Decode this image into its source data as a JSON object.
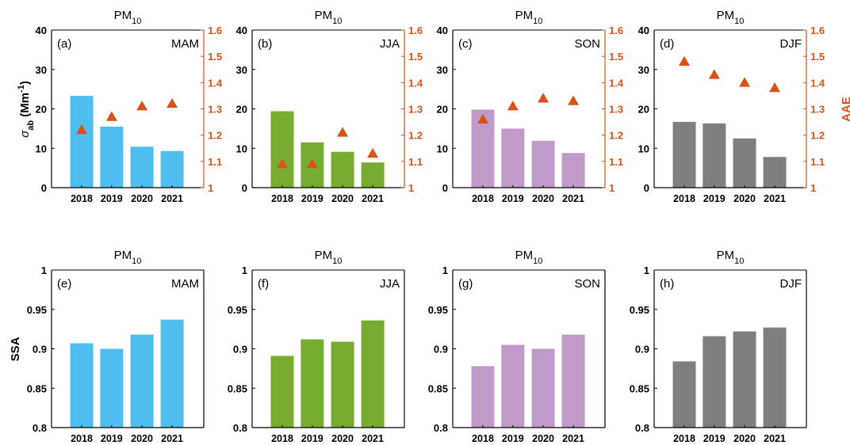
{
  "figure": {
    "shared_ylabel_top": "σ",
    "shared_ylabel_top_sub": "ab",
    "shared_ylabel_top_unit_pre": " (Mm",
    "shared_ylabel_top_unit_sup": "-1",
    "shared_ylabel_top_unit_post": ")",
    "shared_y2label_top": "AAE",
    "shared_ylabel_bottom": "SSA"
  },
  "colors": {
    "MAM": "#4dbeee",
    "JJA": "#77ac30",
    "SON": "#c09ac8",
    "DJF": "#7f7f7f",
    "AAE": "#d95319",
    "axis": "#000000"
  },
  "chart_data": [
    {
      "panel": "(a)",
      "season": "MAM",
      "title_main": "PM",
      "title_sub": "10",
      "type": "bar",
      "categories": [
        "2018",
        "2019",
        "2020",
        "2021"
      ],
      "series": [
        {
          "name": "σab",
          "values": [
            23.3,
            15.5,
            10.4,
            9.3
          ]
        }
      ],
      "ylim": [
        0,
        40
      ],
      "yticks": [
        0,
        10,
        20,
        30,
        40
      ],
      "y2": {
        "name": "AAE",
        "type": "scatter",
        "values": [
          1.22,
          1.27,
          1.31,
          1.32
        ],
        "ylim": [
          1,
          1.6
        ],
        "yticks": [
          "1",
          "1.1",
          "1.2",
          "1.3",
          "1.4",
          "1.5",
          "1.6"
        ]
      }
    },
    {
      "panel": "(b)",
      "season": "JJA",
      "title_main": "PM",
      "title_sub": "10",
      "type": "bar",
      "categories": [
        "2018",
        "2019",
        "2020",
        "2021"
      ],
      "series": [
        {
          "name": "σab",
          "values": [
            19.4,
            11.5,
            9.1,
            6.4
          ]
        }
      ],
      "ylim": [
        0,
        40
      ],
      "yticks": [
        0,
        10,
        20,
        30,
        40
      ],
      "y2": {
        "name": "AAE",
        "type": "scatter",
        "values": [
          1.09,
          1.09,
          1.21,
          1.13
        ],
        "ylim": [
          1,
          1.6
        ],
        "yticks": [
          "1",
          "1.1",
          "1.2",
          "1.3",
          "1.4",
          "1.5",
          "1.6"
        ]
      }
    },
    {
      "panel": "(c)",
      "season": "SON",
      "title_main": "PM",
      "title_sub": "10",
      "type": "bar",
      "categories": [
        "2018",
        "2019",
        "2020",
        "2021"
      ],
      "series": [
        {
          "name": "σab",
          "values": [
            19.8,
            15.0,
            11.9,
            8.8
          ]
        }
      ],
      "ylim": [
        0,
        40
      ],
      "yticks": [
        0,
        10,
        20,
        30,
        40
      ],
      "y2": {
        "name": "AAE",
        "type": "scatter",
        "values": [
          1.26,
          1.31,
          1.34,
          1.33
        ],
        "ylim": [
          1,
          1.6
        ],
        "yticks": [
          "1",
          "1.1",
          "1.2",
          "1.3",
          "1.4",
          "1.5",
          "1.6"
        ]
      }
    },
    {
      "panel": "(d)",
      "season": "DJF",
      "title_main": "PM",
      "title_sub": "10",
      "type": "bar",
      "categories": [
        "2018",
        "2019",
        "2020",
        "2021"
      ],
      "series": [
        {
          "name": "σab",
          "values": [
            16.7,
            16.3,
            12.5,
            7.8
          ]
        }
      ],
      "ylim": [
        0,
        40
      ],
      "yticks": [
        0,
        10,
        20,
        30,
        40
      ],
      "y2": {
        "name": "AAE",
        "type": "scatter",
        "values": [
          1.48,
          1.43,
          1.4,
          1.38
        ],
        "ylim": [
          1,
          1.6
        ],
        "yticks": [
          "1",
          "1.1",
          "1.2",
          "1.3",
          "1.4",
          "1.5",
          "1.6"
        ]
      }
    },
    {
      "panel": "(e)",
      "season": "MAM",
      "title_main": "PM",
      "title_sub": "10",
      "type": "bar",
      "categories": [
        "2018",
        "2019",
        "2020",
        "2021"
      ],
      "series": [
        {
          "name": "SSA",
          "values": [
            0.907,
            0.9,
            0.918,
            0.937
          ]
        }
      ],
      "ylim": [
        0.8,
        1
      ],
      "yticks": [
        "0.8",
        "0.85",
        "0.9",
        "0.95",
        "1"
      ]
    },
    {
      "panel": "(f)",
      "season": "JJA",
      "title_main": "PM",
      "title_sub": "10",
      "type": "bar",
      "categories": [
        "2018",
        "2019",
        "2020",
        "2021"
      ],
      "series": [
        {
          "name": "SSA",
          "values": [
            0.891,
            0.912,
            0.909,
            0.936
          ]
        }
      ],
      "ylim": [
        0.8,
        1
      ],
      "yticks": [
        "0.8",
        "0.85",
        "0.9",
        "0.95",
        "1"
      ]
    },
    {
      "panel": "(g)",
      "season": "SON",
      "title_main": "PM",
      "title_sub": "10",
      "type": "bar",
      "categories": [
        "2018",
        "2019",
        "2020",
        "2021"
      ],
      "series": [
        {
          "name": "SSA",
          "values": [
            0.878,
            0.905,
            0.9,
            0.918
          ]
        }
      ],
      "ylim": [
        0.8,
        1
      ],
      "yticks": [
        "0.8",
        "0.85",
        "0.9",
        "0.95",
        "1"
      ]
    },
    {
      "panel": "(h)",
      "season": "DJF",
      "title_main": "PM",
      "title_sub": "10",
      "type": "bar",
      "categories": [
        "2018",
        "2019",
        "2020",
        "2021"
      ],
      "series": [
        {
          "name": "SSA",
          "values": [
            0.884,
            0.916,
            0.922,
            0.927
          ]
        }
      ],
      "ylim": [
        0.8,
        1
      ],
      "yticks": [
        "0.8",
        "0.85",
        "0.9",
        "0.95",
        "1"
      ]
    }
  ]
}
